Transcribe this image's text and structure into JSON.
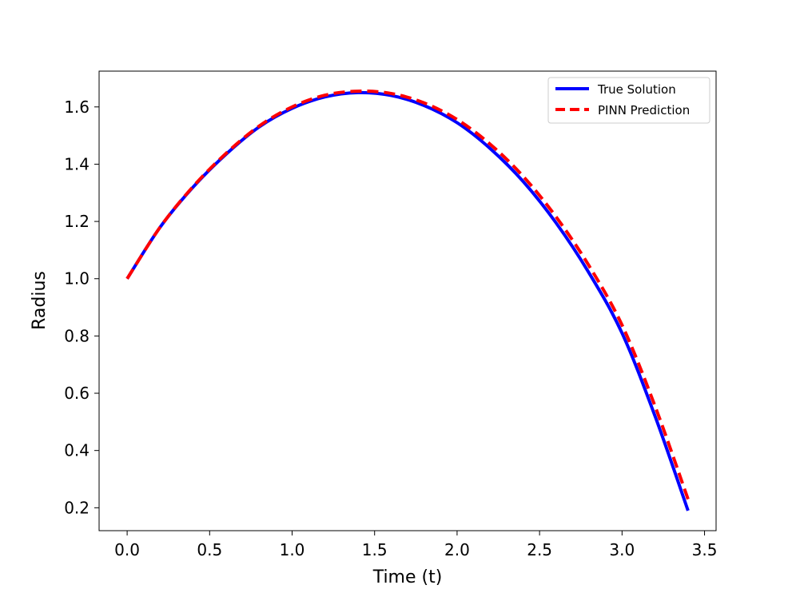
{
  "chart_data": {
    "type": "line",
    "title": "",
    "xlabel": "Time (t)",
    "ylabel": "Radius",
    "xlim": [
      -0.17,
      3.57
    ],
    "ylim": [
      0.12,
      1.725
    ],
    "xticks": [
      0.0,
      0.5,
      1.0,
      1.5,
      2.0,
      2.5,
      3.0,
      3.5
    ],
    "xtick_labels": [
      "0.0",
      "0.5",
      "1.0",
      "1.5",
      "2.0",
      "2.5",
      "3.0",
      "3.5"
    ],
    "yticks": [
      0.2,
      0.4,
      0.6,
      0.8,
      1.0,
      1.2,
      1.4,
      1.6
    ],
    "ytick_labels": [
      "0.2",
      "0.4",
      "0.6",
      "0.8",
      "1.0",
      "1.2",
      "1.4",
      "1.6"
    ],
    "grid": false,
    "legend_position": "top-right",
    "series": [
      {
        "name": "True Solution",
        "color": "#0000ff",
        "style": "solid",
        "x": [
          0.0,
          0.2,
          0.4,
          0.6,
          0.8,
          1.0,
          1.2,
          1.4,
          1.6,
          1.8,
          2.0,
          2.2,
          2.4,
          2.6,
          2.8,
          3.0,
          3.2,
          3.4
        ],
        "y": [
          1.0,
          1.18,
          1.32,
          1.435,
          1.53,
          1.595,
          1.635,
          1.65,
          1.64,
          1.605,
          1.545,
          1.455,
          1.34,
          1.195,
          1.02,
          0.81,
          0.52,
          0.19
        ]
      },
      {
        "name": "PINN Prediction",
        "color": "#ff0000",
        "style": "dashed",
        "x": [
          0.0,
          0.2,
          0.4,
          0.6,
          0.8,
          1.0,
          1.2,
          1.4,
          1.6,
          1.8,
          2.0,
          2.2,
          2.4,
          2.6,
          2.8,
          3.0,
          3.2,
          3.4
        ],
        "y": [
          1.0,
          1.18,
          1.322,
          1.438,
          1.533,
          1.6,
          1.641,
          1.655,
          1.647,
          1.614,
          1.556,
          1.47,
          1.358,
          1.216,
          1.045,
          0.838,
          0.555,
          0.23
        ]
      }
    ]
  }
}
